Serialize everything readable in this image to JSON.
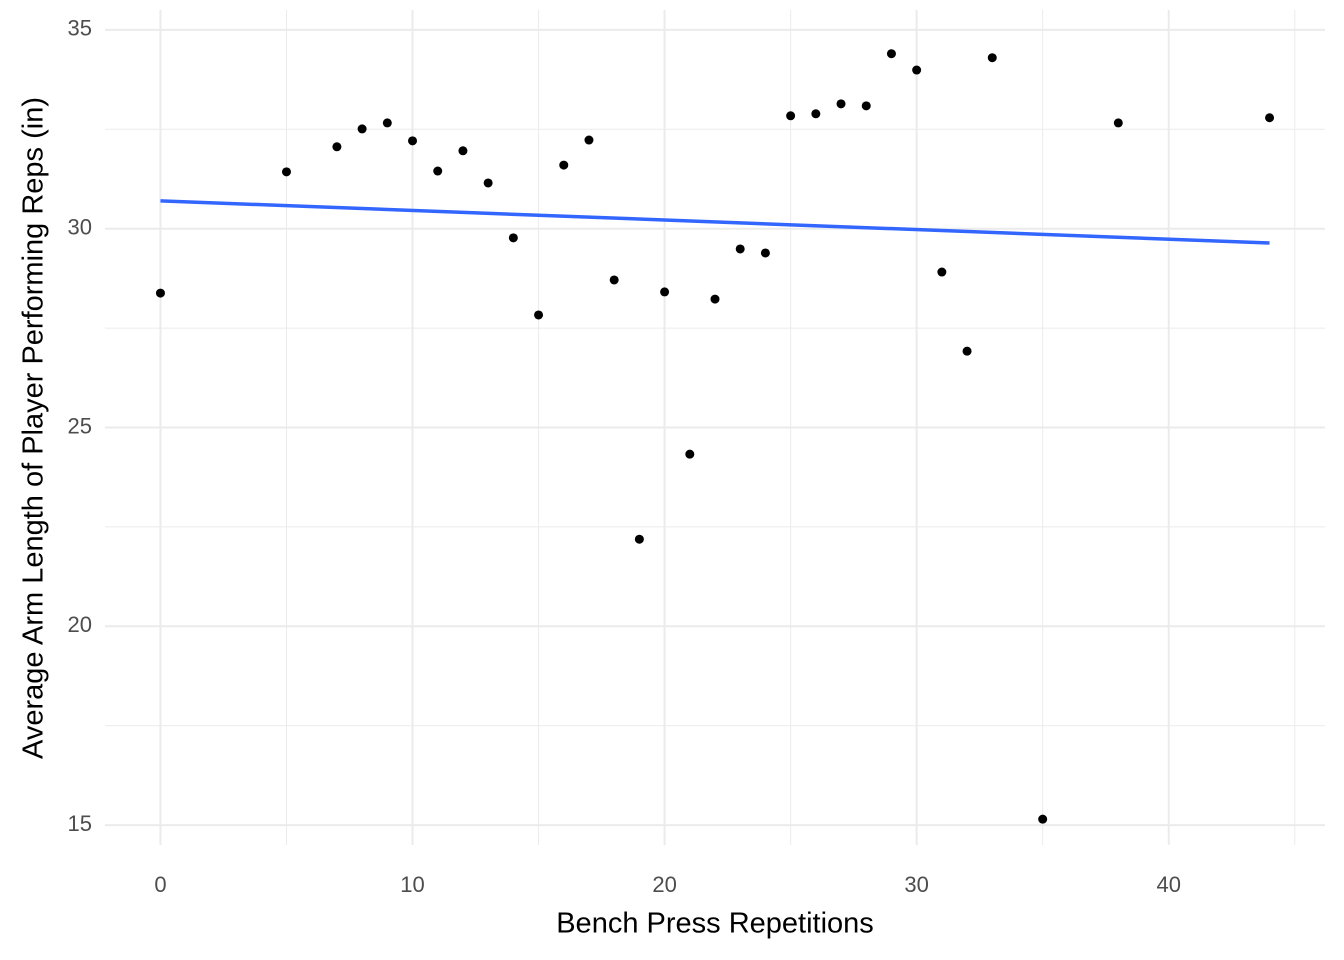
{
  "chart_data": {
    "type": "scatter",
    "x_label": "Bench Press Repetitions",
    "y_label": "Average Arm Length of Player Performing Reps (in)",
    "xlim": [
      -2.2,
      46.2
    ],
    "ylim": [
      14.5,
      35.5
    ],
    "xticks": [
      0,
      10,
      20,
      30,
      40
    ],
    "yticks": [
      15,
      20,
      25,
      30,
      35
    ],
    "x_minor_ticks": [
      5,
      15,
      25,
      35,
      45
    ],
    "y_minor_ticks": [
      17.5,
      22.5,
      27.5,
      32.5
    ],
    "grid": true,
    "series": [
      {
        "type": "scatter",
        "color": "#000000",
        "x": [
          0,
          5,
          7,
          8,
          9,
          10,
          11,
          12,
          13,
          14,
          15,
          16,
          17,
          18,
          19,
          20,
          21,
          22,
          23,
          24,
          25,
          26,
          27,
          28,
          29,
          30,
          31,
          32,
          33,
          35,
          38,
          44
        ],
        "values": [
          28.38,
          31.43,
          32.06,
          32.51,
          32.66,
          32.21,
          31.45,
          31.96,
          31.15,
          29.77,
          27.83,
          31.6,
          32.23,
          28.71,
          22.19,
          28.41,
          24.33,
          28.23,
          29.49,
          29.39,
          32.84,
          32.89,
          33.14,
          33.09,
          34.4,
          33.99,
          28.91,
          26.92,
          34.3,
          15.15,
          32.66,
          32.79
        ]
      },
      {
        "type": "line",
        "color": "#3366FF",
        "x": [
          0,
          44
        ],
        "values": [
          30.7,
          29.64
        ]
      }
    ]
  }
}
